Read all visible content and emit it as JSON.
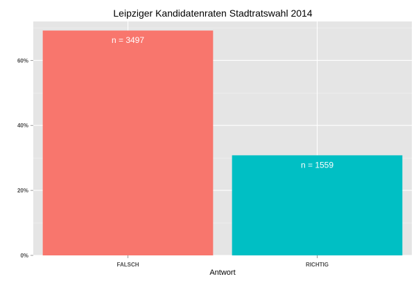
{
  "chart_data": {
    "type": "bar",
    "title": "Leipziger Kandidatenraten Stadtratswahl 2014",
    "xlabel": "Antwort",
    "ylabel": "",
    "categories": [
      "FALSCH",
      "RICHTIG"
    ],
    "values": [
      69.2,
      30.8
    ],
    "value_unit": "%",
    "bar_labels": [
      "n = 3497",
      "n = 1559"
    ],
    "colors": [
      "#F8766D",
      "#00BFC4"
    ],
    "ylim": [
      0,
      72
    ],
    "yticks": [
      0,
      20,
      40,
      60
    ],
    "ytick_labels": [
      "0%",
      "20%",
      "40%",
      "60%"
    ],
    "grid": true,
    "legend": "none",
    "panel_background": "#E5E5E5",
    "grid_color": "#FFFFFF"
  }
}
